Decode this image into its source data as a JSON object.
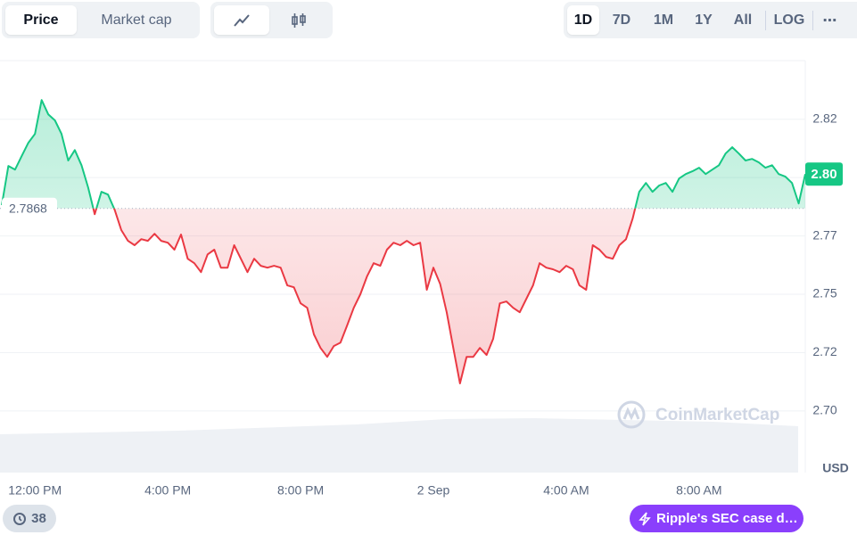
{
  "toolbar": {
    "view_tabs": [
      "Price",
      "Market cap"
    ],
    "ranges": [
      "1D",
      "7D",
      "1M",
      "1Y",
      "All"
    ],
    "scale": "LOG"
  },
  "chart_data": {
    "type": "line",
    "categories": [
      null,
      null,
      null,
      null,
      null,
      "12:00 PM",
      null,
      null,
      null,
      null,
      null,
      null,
      null,
      null,
      null,
      null,
      null,
      null,
      null,
      null,
      null,
      null,
      null,
      null,
      null,
      "4:00 PM",
      null,
      null,
      null,
      null,
      null,
      null,
      null,
      null,
      null,
      null,
      null,
      null,
      null,
      null,
      null,
      null,
      null,
      null,
      null,
      "8:00 PM",
      null,
      null,
      null,
      null,
      null,
      null,
      null,
      null,
      null,
      null,
      null,
      null,
      null,
      null,
      null,
      null,
      null,
      null,
      null,
      "2 Sep",
      null,
      null,
      null,
      null,
      null,
      null,
      null,
      null,
      null,
      null,
      null,
      null,
      null,
      null,
      null,
      null,
      null,
      null,
      null,
      "4:00 AM",
      null,
      null,
      null,
      null,
      null,
      null,
      null,
      null,
      null,
      null,
      null,
      null,
      null,
      null,
      null,
      null,
      null,
      null,
      null,
      "8:00 AM",
      null,
      null,
      null,
      null,
      null,
      null,
      null,
      null,
      null,
      null,
      null,
      null,
      null,
      null,
      null,
      null
    ],
    "values": [
      2.7882,
      2.805,
      2.8034,
      2.8092,
      2.8149,
      2.8187,
      2.8332,
      2.8271,
      2.8245,
      2.8187,
      2.8073,
      2.8118,
      2.8053,
      2.7958,
      2.7843,
      2.7939,
      2.7927,
      2.7862,
      2.7775,
      2.7729,
      2.771,
      2.7736,
      2.7729,
      2.7759,
      2.7729,
      2.7721,
      2.7691,
      2.7756,
      2.7652,
      2.7633,
      2.7595,
      2.7671,
      2.7691,
      2.7614,
      2.7614,
      2.771,
      2.7652,
      2.7595,
      2.7652,
      2.7622,
      2.7614,
      2.7622,
      2.7614,
      2.7538,
      2.753,
      2.7461,
      2.7442,
      2.7328,
      2.727,
      2.7232,
      2.7278,
      2.7293,
      2.7366,
      2.7442,
      2.75,
      2.7576,
      2.7633,
      2.7622,
      2.7691,
      2.7721,
      2.771,
      2.7729,
      2.771,
      2.7721,
      2.7519,
      2.7614,
      2.7545,
      2.7423,
      2.727,
      2.7118,
      2.7232,
      2.7232,
      2.727,
      2.724,
      2.7309,
      2.7461,
      2.7469,
      2.7442,
      2.7423,
      2.7481,
      2.7538,
      2.7633,
      2.7614,
      2.7607,
      2.7595,
      2.7622,
      2.7607,
      2.7538,
      2.7519,
      2.771,
      2.7691,
      2.766,
      2.7652,
      2.771,
      2.7736,
      2.7824,
      2.7939,
      2.7977,
      2.7939,
      2.7966,
      2.7977,
      2.7939,
      2.7996,
      2.8015,
      2.8027,
      2.8042,
      2.8015,
      2.8034,
      2.8053,
      2.8103,
      2.813,
      2.8103,
      2.8073,
      2.808,
      2.8065,
      2.8042,
      2.8053,
      2.8015,
      2.8004,
      2.7977,
      2.7889,
      2.8015
    ],
    "baseline": 2.7868,
    "current_price": {
      "value": 2.8015,
      "label": "2.80"
    },
    "up_color": "#16c784",
    "down_color": "#ea3943",
    "ylim": [
      2.6736,
      2.8501
    ],
    "yticks": [
      {
        "value": 2.825,
        "label": "2.82"
      },
      {
        "value": 2.8,
        "label": "2.80"
      },
      {
        "value": 2.775,
        "label": "2.77"
      },
      2.75,
      {
        "value": 2.725,
        "label": "2.72"
      },
      {
        "value": 2.7,
        "label": "2.70"
      }
    ],
    "grid": true,
    "currency": "USD",
    "watermark": "CoinMarketCap"
  },
  "footer": {
    "history_count": 38,
    "news": "Ripple's SEC case d…"
  }
}
